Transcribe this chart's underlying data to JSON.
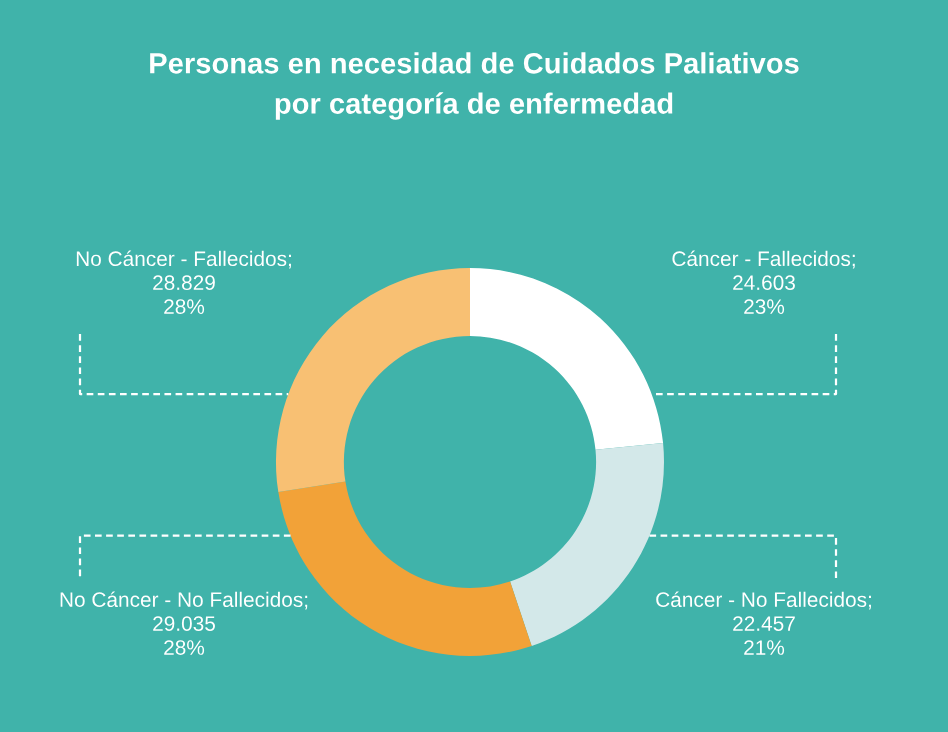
{
  "chart_data": {
    "type": "donut",
    "title": "Personas en necesidad de Cuidados Paliativos\npor categoría de enfermedad",
    "categories": [
      "Cáncer - Fallecidos",
      "Cáncer - No Fallecidos",
      "No Cáncer - No Fallecidos",
      "No Cáncer - Fallecidos"
    ],
    "values": [
      24603,
      22457,
      29035,
      28829
    ],
    "value_labels": [
      ";\n24.603\n23%",
      ";\n22.457\n21%",
      ";\n29.035\n28%",
      ";\n28.829\n28%"
    ],
    "colors": [
      "#ffffff",
      "#d3e8e9",
      "#f2a238",
      "#f8c073"
    ],
    "legend": false
  }
}
